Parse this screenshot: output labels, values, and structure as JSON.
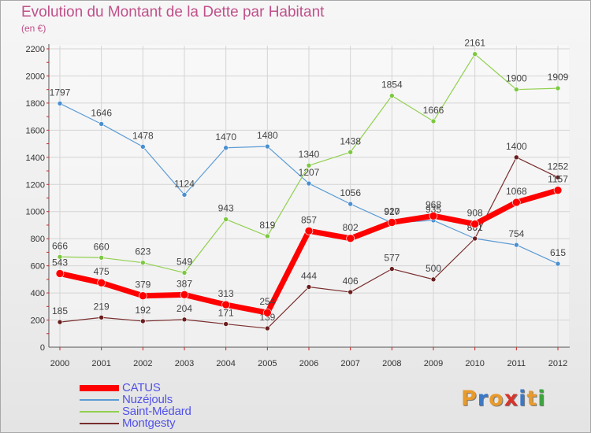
{
  "title": "Evolution du Montant de la Dette par Habitant",
  "subtitle": "(en €)",
  "logo_text": "Proxiti",
  "logo_colors": [
    "#e89a2c",
    "#3a78c9",
    "#e89a2c",
    "#d7352c",
    "#3a78c9",
    "#e89a2c",
    "#3fa33f"
  ],
  "chart_data": {
    "type": "line",
    "x": [
      2000,
      2001,
      2002,
      2003,
      2004,
      2005,
      2006,
      2007,
      2008,
      2009,
      2010,
      2011,
      2012
    ],
    "ylim": [
      0,
      2200
    ],
    "yticks": [
      0,
      200,
      400,
      600,
      800,
      1000,
      1200,
      1400,
      1600,
      1800,
      2000,
      2200
    ],
    "grid": true,
    "legend_position": "bottom-left",
    "series": [
      {
        "name": "Nuzéjouls",
        "color": "#5b9bd5",
        "values": [
          1797,
          1646,
          1478,
          1124,
          1470,
          1480,
          1207,
          1056,
          917,
          935,
          801,
          754,
          615
        ]
      },
      {
        "name": "Saint-Médard",
        "color": "#92d050",
        "values": [
          666,
          660,
          623,
          549,
          943,
          819,
          1340,
          1438,
          1854,
          1666,
          2161,
          1900,
          1909
        ]
      },
      {
        "name": "Montgesty",
        "color": "#7a2e2e",
        "values": [
          185,
          219,
          192,
          204,
          171,
          139,
          444,
          406,
          577,
          500,
          801,
          1400,
          1252
        ]
      },
      {
        "name": "CATUS",
        "color": "#ff0000",
        "values": [
          543,
          475,
          379,
          387,
          313,
          254,
          857,
          802,
          920,
          968,
          908,
          1068,
          1157
        ]
      }
    ],
    "legend_order": [
      "CATUS",
      "Nuzéjouls",
      "Saint-Médard",
      "Montgesty"
    ]
  }
}
